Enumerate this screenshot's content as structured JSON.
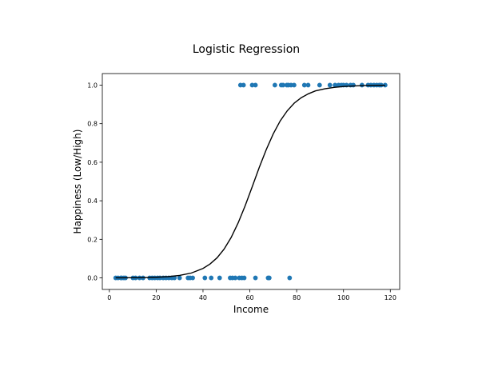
{
  "chart_data": {
    "type": "scatter",
    "title": "Logistic Regression",
    "xlabel": "Income",
    "ylabel": "Happiness (Low/High)",
    "xlim": [
      -3,
      124
    ],
    "ylim": [
      -0.06,
      1.06
    ],
    "xticks": [
      0,
      20,
      40,
      60,
      80,
      100,
      120
    ],
    "yticks": [
      0.0,
      0.2,
      0.4,
      0.6,
      0.8,
      1.0
    ],
    "grid": false,
    "legend": "none",
    "colors": {
      "points": "#1f77b4",
      "curve": "#000000",
      "axes": "#000000"
    },
    "series": [
      {
        "type": "scatter",
        "x": [
          2.7,
          3.7,
          4.9,
          5.3,
          6.2,
          6.9,
          10.1,
          11.2,
          12.9,
          14.4,
          17.2,
          18.3,
          19.4,
          20.6,
          21.6,
          23.0,
          24.2,
          25.4,
          26.7,
          27.8,
          30.0,
          33.6,
          34.5,
          35.6,
          40.8,
          43.5,
          47.1,
          51.6,
          52.6,
          53.8,
          55.5,
          56.6,
          57.6,
          62.4,
          67.8,
          68.3,
          77.0,
          56.0,
          57.3,
          61.0,
          62.4,
          70.7,
          73.4,
          74.2,
          75.8,
          76.5,
          77.6,
          78.9,
          83.3,
          84.9,
          89.8,
          94.2,
          96.4,
          97.9,
          99.1,
          100.0,
          101.3,
          103.0,
          104.2,
          107.9,
          110.5,
          111.7,
          113.0,
          114.2,
          115.3,
          116.1,
          117.8
        ],
        "y": [
          0,
          0,
          0,
          0,
          0,
          0,
          0,
          0,
          0,
          0,
          0,
          0,
          0,
          0,
          0,
          0,
          0,
          0,
          0,
          0,
          0,
          0,
          0,
          0,
          0,
          0,
          0,
          0,
          0,
          0,
          0,
          0,
          0,
          0,
          0,
          0,
          0,
          1,
          1,
          1,
          1,
          1,
          1,
          1,
          1,
          1,
          1,
          1,
          1,
          1,
          1,
          1,
          1,
          1,
          1,
          1,
          1,
          1,
          1,
          1,
          1,
          1,
          1,
          1,
          1,
          1,
          1
        ]
      },
      {
        "type": "line",
        "x": [
          2.7,
          5,
          10,
          15,
          20,
          25,
          30,
          35,
          40,
          43,
          46,
          49,
          52,
          55,
          58,
          61,
          64,
          67,
          70,
          73,
          76,
          79,
          82,
          85,
          88,
          92,
          96,
          100,
          105,
          110,
          115,
          117.8
        ],
        "y": [
          0.0003,
          0.0004,
          0.0008,
          0.0016,
          0.0032,
          0.0064,
          0.0127,
          0.025,
          0.049,
          0.072,
          0.104,
          0.149,
          0.209,
          0.285,
          0.374,
          0.472,
          0.572,
          0.665,
          0.747,
          0.815,
          0.867,
          0.907,
          0.935,
          0.955,
          0.97,
          0.981,
          0.988,
          0.993,
          0.996,
          0.998,
          0.999,
          0.9992
        ]
      }
    ]
  }
}
